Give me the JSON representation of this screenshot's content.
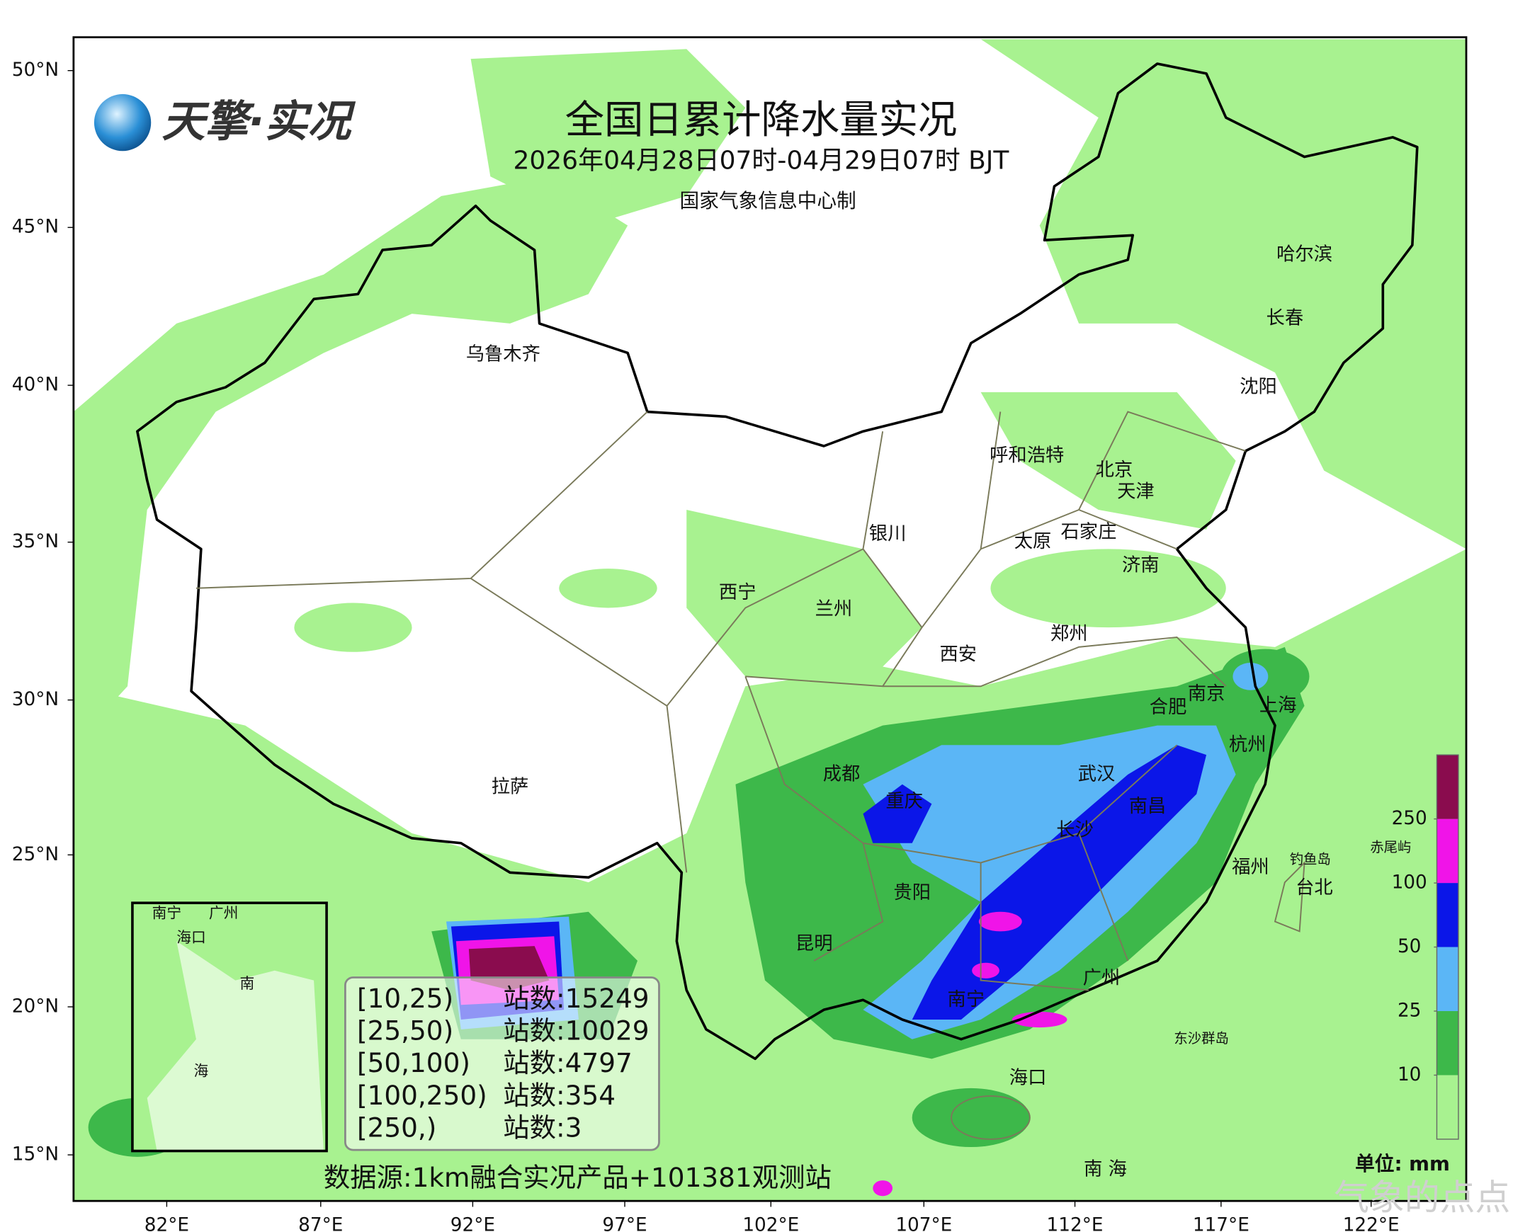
{
  "logo": "天擎·实况",
  "title": "全国日累计降水量实况",
  "subtitle": "2026年04月28日07时-04月29日07时 BJT",
  "producer": "国家气象信息中心制",
  "lat_labels": [
    "50°N",
    "45°N",
    "40°N",
    "35°N",
    "30°N",
    "25°N",
    "20°N",
    "15°N"
  ],
  "lon_labels": [
    "82°E",
    "87°E",
    "92°E",
    "97°E",
    "102°E",
    "107°E",
    "112°E",
    "117°E",
    "122°E"
  ],
  "cities": [
    "乌鲁木齐",
    "哈尔滨",
    "长春",
    "沈阳",
    "呼和浩特",
    "北京",
    "天津",
    "石家庄",
    "太原",
    "银川",
    "济南",
    "西宁",
    "兰州",
    "郑州",
    "西安",
    "南京",
    "合肥",
    "上海",
    "杭州",
    "拉萨",
    "成都",
    "武汉",
    "重庆",
    "南昌",
    "长沙",
    "福州",
    "台北",
    "贵阳",
    "昆明",
    "广州",
    "南宁",
    "海口",
    "南 海"
  ],
  "islands": [
    "钓鱼岛",
    "赤尾屿",
    "东沙群岛"
  ],
  "inset_labels": [
    "南宁",
    "广州",
    "海口",
    "南",
    "海"
  ],
  "stats": [
    {
      "range": "[10,25)",
      "stations": "站数:15249"
    },
    {
      "range": "[25,50)",
      "stations": "站数:10029"
    },
    {
      "range": "[50,100)",
      "stations": "站数:4797"
    },
    {
      "range": "[100,250)",
      "stations": "站数:354"
    },
    {
      "range": "[250,)",
      "stations": "站数:3"
    }
  ],
  "source": "数据源:1km融合实况产品+101381观测站",
  "colorbar": {
    "levels": [
      10,
      25,
      50,
      100,
      250
    ],
    "colors": [
      "#a8f290",
      "#3db84a",
      "#5bb6f6",
      "#0b16e8",
      "#f014e8",
      "#8a0c4e"
    ],
    "unit": "单位: mm"
  },
  "watermark": "气象的点点"
}
